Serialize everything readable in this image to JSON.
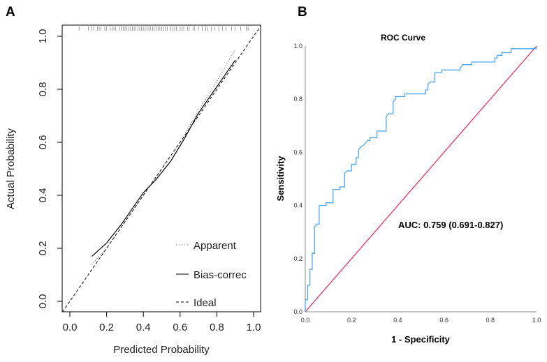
{
  "chart_data": [
    {
      "panel_label": "A",
      "type": "line",
      "title": "",
      "xlabel": "Predicted Probability",
      "ylabel": "Actual Probability",
      "xlim": [
        -0.04,
        1.04
      ],
      "ylim": [
        -0.04,
        1.04
      ],
      "xticks": [
        "0.0",
        "0.2",
        "0.4",
        "0.6",
        "0.8",
        "1.0"
      ],
      "yticks": [
        "0.0",
        "0.2",
        "0.4",
        "0.6",
        "0.8",
        "1.0"
      ],
      "legend": {
        "placement": "bottom-right",
        "entries": [
          "Apparent",
          "Bias-correc",
          "Ideal"
        ]
      },
      "series": [
        {
          "name": "Apparent",
          "style": "dotted",
          "points": [
            [
              0.12,
              0.14
            ],
            [
              0.2,
              0.2
            ],
            [
              0.3,
              0.3
            ],
            [
              0.4,
              0.4
            ],
            [
              0.5,
              0.5
            ],
            [
              0.6,
              0.6
            ],
            [
              0.7,
              0.72
            ],
            [
              0.8,
              0.83
            ],
            [
              0.9,
              0.95
            ]
          ]
        },
        {
          "name": "Bias-correc",
          "style": "solid",
          "points": [
            [
              0.12,
              0.17
            ],
            [
              0.2,
              0.22
            ],
            [
              0.28,
              0.29
            ],
            [
              0.35,
              0.36
            ],
            [
              0.4,
              0.41
            ],
            [
              0.47,
              0.46
            ],
            [
              0.55,
              0.53
            ],
            [
              0.62,
              0.61
            ],
            [
              0.7,
              0.71
            ],
            [
              0.8,
              0.81
            ],
            [
              0.9,
              0.91
            ]
          ]
        },
        {
          "name": "Ideal",
          "style": "dashed",
          "points": [
            [
              -0.04,
              -0.04
            ],
            [
              1.04,
              1.04
            ]
          ]
        }
      ],
      "rug": [
        0.05,
        0.1,
        0.12,
        0.13,
        0.15,
        0.16,
        0.17,
        0.19,
        0.2,
        0.22,
        0.23,
        0.24,
        0.25,
        0.27,
        0.28,
        0.29,
        0.3,
        0.31,
        0.32,
        0.33,
        0.34,
        0.35,
        0.36,
        0.37,
        0.38,
        0.39,
        0.4,
        0.41,
        0.42,
        0.43,
        0.44,
        0.45,
        0.46,
        0.47,
        0.48,
        0.49,
        0.5,
        0.51,
        0.52,
        0.53,
        0.55,
        0.56,
        0.57,
        0.58,
        0.6,
        0.61,
        0.62,
        0.64,
        0.65,
        0.67,
        0.68,
        0.7,
        0.72,
        0.74,
        0.75,
        0.77,
        0.79,
        0.81,
        0.83,
        0.85,
        0.88,
        0.9,
        0.93,
        0.96,
        0.97
      ]
    },
    {
      "panel_label": "B",
      "type": "line",
      "title": "ROC Curve",
      "xlabel": "1 - Specificity",
      "ylabel": "Sensitivity",
      "xlim": [
        0,
        1
      ],
      "ylim": [
        0,
        1
      ],
      "xticks": [
        "0.0",
        "0.2",
        "0.4",
        "0.6",
        "0.8",
        "1.0"
      ],
      "yticks": [
        "0.0",
        "0.2",
        "0.4",
        "0.6",
        "0.8",
        "1.0"
      ],
      "annotation": "AUC: 0.759 (0.691-0.827)",
      "colors": {
        "roc": "#4da6f0",
        "reference": "#f0245a"
      },
      "series": [
        {
          "name": "ROC",
          "points": [
            [
              0,
              0
            ],
            [
              0,
              0.045
            ],
            [
              0.01,
              0.045
            ],
            [
              0.01,
              0.1
            ],
            [
              0.02,
              0.1
            ],
            [
              0.02,
              0.16
            ],
            [
              0.03,
              0.16
            ],
            [
              0.03,
              0.22
            ],
            [
              0.04,
              0.22
            ],
            [
              0.04,
              0.32
            ],
            [
              0.05,
              0.33
            ],
            [
              0.06,
              0.33
            ],
            [
              0.06,
              0.4
            ],
            [
              0.09,
              0.4
            ],
            [
              0.09,
              0.41
            ],
            [
              0.12,
              0.41
            ],
            [
              0.12,
              0.46
            ],
            [
              0.15,
              0.46
            ],
            [
              0.15,
              0.47
            ],
            [
              0.17,
              0.47
            ],
            [
              0.17,
              0.52
            ],
            [
              0.18,
              0.53
            ],
            [
              0.2,
              0.53
            ],
            [
              0.2,
              0.555
            ],
            [
              0.22,
              0.555
            ],
            [
              0.22,
              0.58
            ],
            [
              0.23,
              0.58
            ],
            [
              0.23,
              0.61
            ],
            [
              0.24,
              0.62
            ],
            [
              0.25,
              0.625
            ],
            [
              0.26,
              0.635
            ],
            [
              0.27,
              0.645
            ],
            [
              0.28,
              0.645
            ],
            [
              0.28,
              0.655
            ],
            [
              0.31,
              0.655
            ],
            [
              0.31,
              0.68
            ],
            [
              0.35,
              0.68
            ],
            [
              0.35,
              0.735
            ],
            [
              0.36,
              0.745
            ],
            [
              0.38,
              0.745
            ],
            [
              0.38,
              0.79
            ],
            [
              0.39,
              0.8
            ],
            [
              0.39,
              0.81
            ],
            [
              0.43,
              0.81
            ],
            [
              0.43,
              0.82
            ],
            [
              0.52,
              0.82
            ],
            [
              0.52,
              0.835
            ],
            [
              0.53,
              0.835
            ],
            [
              0.53,
              0.855
            ],
            [
              0.54,
              0.865
            ],
            [
              0.56,
              0.865
            ],
            [
              0.56,
              0.9
            ],
            [
              0.59,
              0.9
            ],
            [
              0.59,
              0.91
            ],
            [
              0.67,
              0.91
            ],
            [
              0.67,
              0.92
            ],
            [
              0.68,
              0.925
            ],
            [
              0.68,
              0.93
            ],
            [
              0.72,
              0.93
            ],
            [
              0.72,
              0.94
            ],
            [
              0.82,
              0.94
            ],
            [
              0.82,
              0.955
            ],
            [
              0.83,
              0.955
            ],
            [
              0.83,
              0.965
            ],
            [
              0.85,
              0.965
            ],
            [
              0.85,
              0.975
            ],
            [
              0.89,
              0.975
            ],
            [
              0.89,
              0.99
            ],
            [
              1,
              0.99
            ],
            [
              1,
              1
            ]
          ]
        },
        {
          "name": "Reference",
          "points": [
            [
              0,
              0
            ],
            [
              1,
              1
            ]
          ]
        }
      ]
    }
  ]
}
